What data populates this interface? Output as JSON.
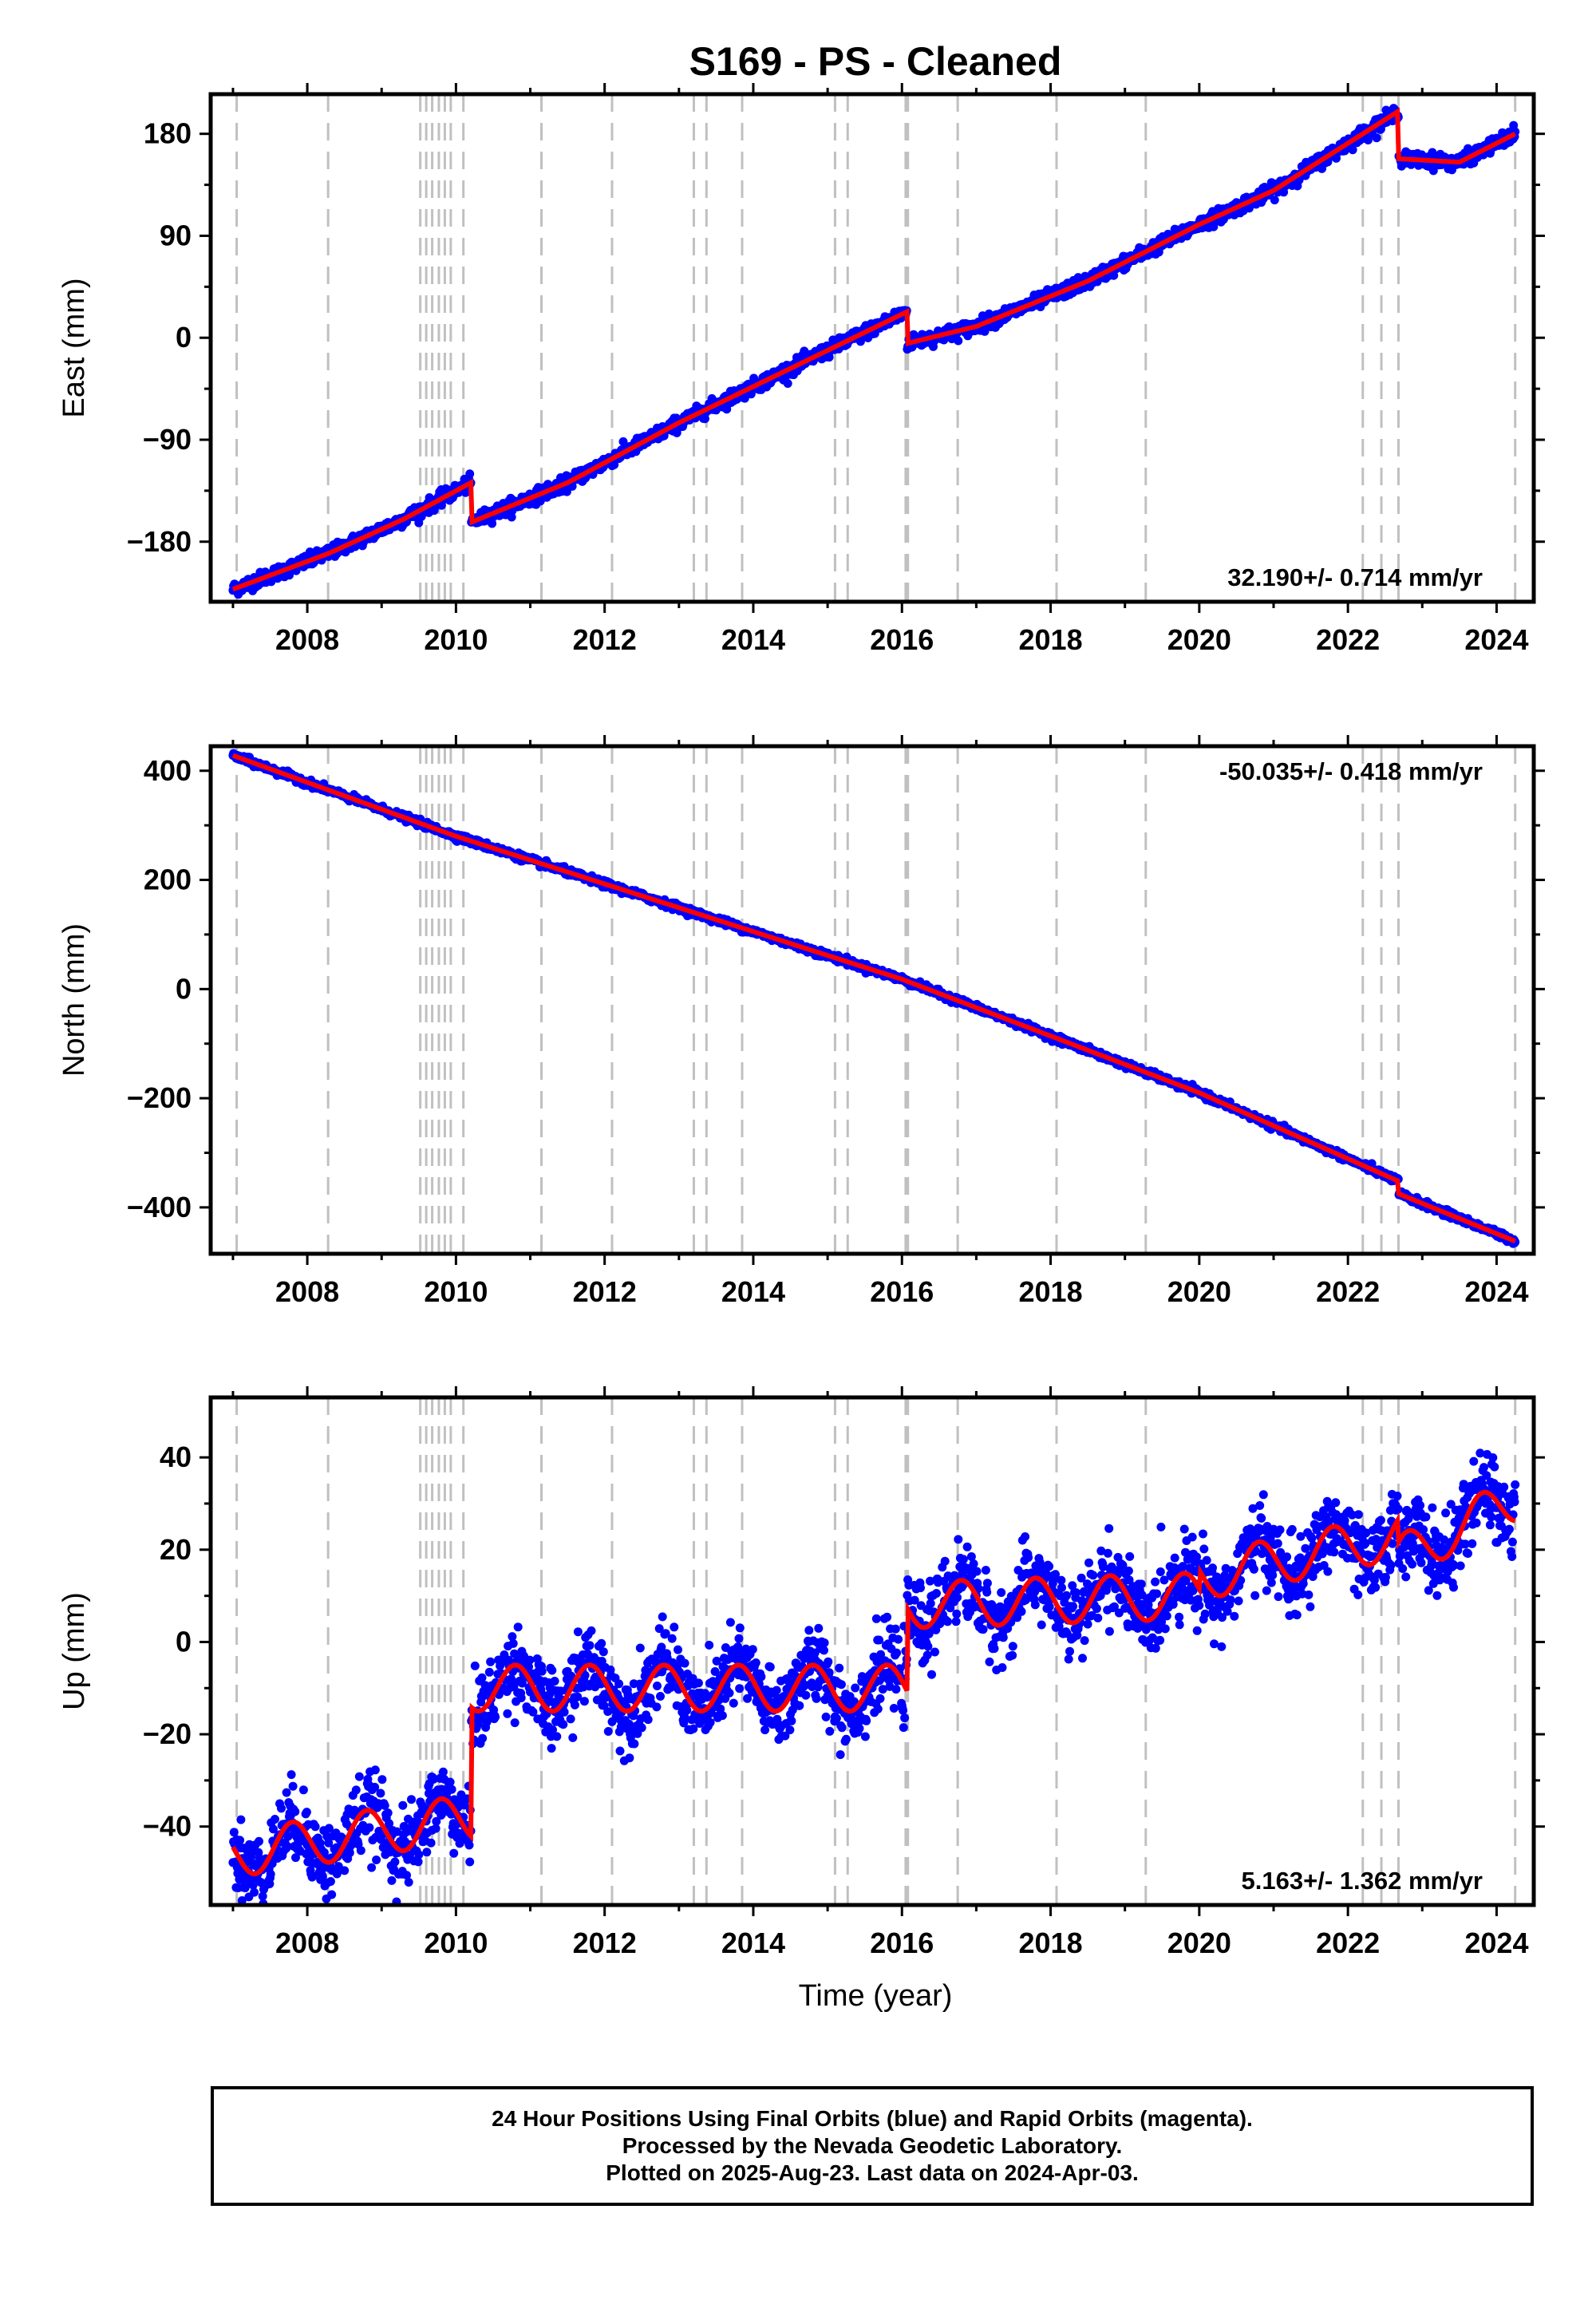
{
  "title": "S169  - PS - Cleaned",
  "colors": {
    "final_orbits": "#0000ff",
    "rapid_orbits": "#ff00ff",
    "model_fit": "#ff0000",
    "event_lines": "#c0c0c0",
    "frame": "#000000"
  },
  "x_axis": {
    "label": "Time (year)",
    "range": [
      2006.7,
      2024.5
    ],
    "ticks": [
      2008,
      2010,
      2012,
      2014,
      2016,
      2018,
      2020,
      2022,
      2024
    ],
    "tick_labels": [
      "2008",
      "2010",
      "2012",
      "2014",
      "2016",
      "2018",
      "2020",
      "2022",
      "2024"
    ]
  },
  "event_lines_years": [
    2007.05,
    2008.28,
    2009.52,
    2009.6,
    2009.68,
    2009.77,
    2009.85,
    2009.93,
    2010.1,
    2011.15,
    2012.1,
    2013.2,
    2013.37,
    2013.85,
    2015.1,
    2015.27,
    2016.05,
    2016.08,
    2016.75,
    2018.08,
    2019.28,
    2022.2,
    2022.45,
    2022.68,
    2024.25
  ],
  "last_data_year": 2024.25,
  "footer": {
    "line1": "24 Hour Positions Using Final Orbits (blue) and Rapid Orbits (magenta).",
    "line2": "Processed by the Nevada Geodetic Laboratory.",
    "line3": "Plotted on 2025-Aug-23. Last data on 2024-Apr-03."
  },
  "chart_data": [
    {
      "type": "scatter",
      "name": "east",
      "ylabel": "East (mm)",
      "ylim": [
        -233,
        215
      ],
      "yticks": [
        -180,
        -90,
        0,
        90,
        180
      ],
      "ytick_labels": [
        "−180",
        "−90",
        "0",
        "90",
        "180"
      ],
      "rate_annotation": "32.190+/- 0.714 mm/yr",
      "rate_position": "bottom-right",
      "rate_mm_per_yr": 32.19,
      "noise_mm": 3,
      "segments": [
        {
          "t0": 2007.0,
          "t1": 2008.3,
          "y0": -222,
          "y1": -190
        },
        {
          "t0": 2008.3,
          "t1": 2009.3,
          "y0": -190,
          "y1": -160
        },
        {
          "t0": 2009.3,
          "t1": 2010.2,
          "y0": -160,
          "y1": -128
        },
        {
          "t0": 2010.2,
          "t1": 2011.5,
          "y0": -163,
          "y1": -128
        },
        {
          "t0": 2011.5,
          "t1": 2013.0,
          "y0": -128,
          "y1": -75
        },
        {
          "t0": 2013.0,
          "t1": 2016.07,
          "y0": -75,
          "y1": 23
        },
        {
          "t0": 2016.07,
          "t1": 2017.0,
          "y0": -5,
          "y1": 10
        },
        {
          "t0": 2017.0,
          "t1": 2018.5,
          "y0": 10,
          "y1": 50
        },
        {
          "t0": 2018.5,
          "t1": 2020.0,
          "y0": 50,
          "y1": 100
        },
        {
          "t0": 2020.0,
          "t1": 2021.0,
          "y0": 100,
          "y1": 130
        },
        {
          "t0": 2021.0,
          "t1": 2022.68,
          "y0": 130,
          "y1": 200
        },
        {
          "t0": 2022.68,
          "t1": 2023.5,
          "y0": 158,
          "y1": 155
        },
        {
          "t0": 2023.5,
          "t1": 2024.25,
          "y0": 155,
          "y1": 180
        }
      ],
      "seasonal": {
        "amp": 0,
        "phase": 0
      }
    },
    {
      "type": "scatter",
      "name": "north",
      "ylabel": "North (mm)",
      "ylim": [
        -485,
        445
      ],
      "yticks": [
        -400,
        -200,
        0,
        200,
        400
      ],
      "ytick_labels": [
        "−400",
        "−200",
        "0",
        "200",
        "400"
      ],
      "rate_annotation": "-50.035+/- 0.418 mm/yr",
      "rate_position": "top-right",
      "rate_mm_per_yr": -50.035,
      "noise_mm": 3,
      "segments": [
        {
          "t0": 2007.0,
          "t1": 2010.0,
          "y0": 428,
          "y1": 280
        },
        {
          "t0": 2010.0,
          "t1": 2016.0,
          "y0": 280,
          "y1": 18
        },
        {
          "t0": 2016.0,
          "t1": 2020.0,
          "y0": 18,
          "y1": -190
        },
        {
          "t0": 2020.0,
          "t1": 2022.68,
          "y0": -190,
          "y1": -352
        },
        {
          "t0": 2022.68,
          "t1": 2024.25,
          "y0": -375,
          "y1": -462
        }
      ],
      "seasonal": {
        "amp": 0,
        "phase": 0
      }
    },
    {
      "type": "scatter",
      "name": "up",
      "ylabel": "Up (mm)",
      "ylim": [
        -57,
        53
      ],
      "yticks": [
        -40,
        -20,
        0,
        20,
        40
      ],
      "ytick_labels": [
        "−40",
        "−20",
        "0",
        "20",
        "40"
      ],
      "rate_annotation": "5.163+/- 1.362 mm/yr",
      "rate_position": "bottom-right",
      "rate_mm_per_yr": 5.163,
      "noise_mm": 4,
      "segments": [
        {
          "t0": 2007.0,
          "t1": 2010.2,
          "y0": -46,
          "y1": -38
        },
        {
          "t0": 2010.2,
          "t1": 2016.07,
          "y0": -10,
          "y1": -10
        },
        {
          "t0": 2016.07,
          "t1": 2020.0,
          "y0": 8,
          "y1": 10
        },
        {
          "t0": 2020.0,
          "t1": 2022.68,
          "y0": 14,
          "y1": 23
        },
        {
          "t0": 2022.68,
          "t1": 2024.25,
          "y0": 18,
          "y1": 31
        }
      ],
      "seasonal": {
        "amp": 5,
        "phase": 0.55
      }
    }
  ]
}
